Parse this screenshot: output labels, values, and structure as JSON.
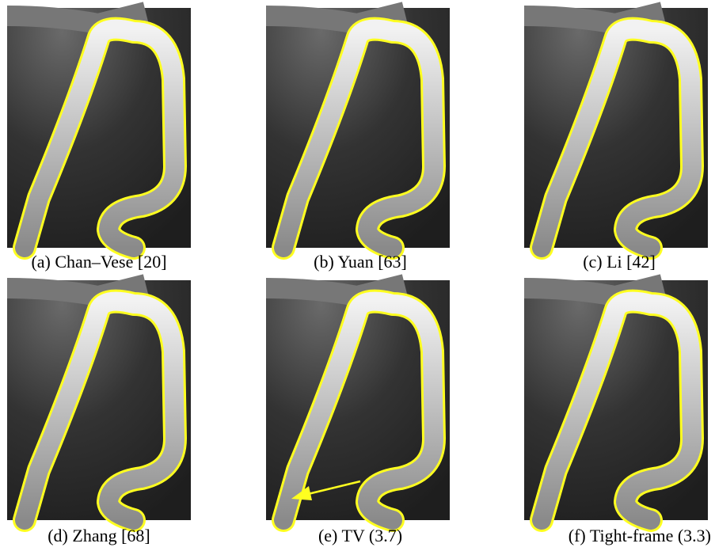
{
  "figure": {
    "panels": [
      {
        "caption": "(a) Chan–Vese [20]"
      },
      {
        "caption": "(b) Yuan [63]"
      },
      {
        "caption": "(c) Li [42]"
      },
      {
        "caption": "(d) Zhang [68]"
      },
      {
        "caption": "(e) TV (3.7)"
      },
      {
        "caption": "(f) Tight-frame (3.3)"
      }
    ]
  }
}
